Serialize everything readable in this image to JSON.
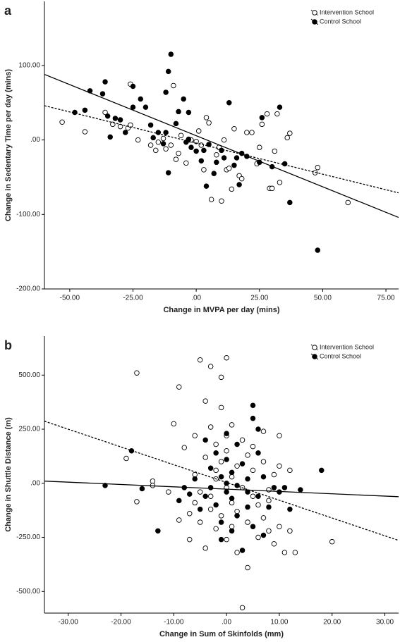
{
  "chart_data": [
    {
      "type": "scatter",
      "panel_label": "a",
      "x_label": "Change in MVPA per day (mins)",
      "y_label": "Change in Sedentary Time per day (mins)",
      "xlim": [
        -60,
        80
      ],
      "ylim": [
        -200,
        186
      ],
      "xticks": [
        {
          "value": -50,
          "label": "-50.00"
        },
        {
          "value": -25,
          "label": "-25.00"
        },
        {
          "value": 0,
          "label": ".00"
        },
        {
          "value": 25,
          "label": "25.00"
        },
        {
          "value": 50,
          "label": "50.00"
        },
        {
          "value": 75,
          "label": "75.00"
        }
      ],
      "yticks": [
        {
          "value": 100,
          "label": "100.00"
        },
        {
          "value": 0,
          "label": ".00"
        },
        {
          "value": -100,
          "label": "-100.00"
        },
        {
          "value": -200,
          "label": "-200.00"
        }
      ],
      "legend": "top-right",
      "series": [
        {
          "name": "Intervention School",
          "color": "#000000",
          "marker": "open",
          "line": "dashed",
          "x": [
            -53,
            -44,
            -36,
            -33,
            -30,
            -27,
            -26,
            -26,
            -23,
            -18,
            -16,
            -15,
            -13,
            -12,
            -10,
            -9,
            -8,
            -7,
            -6,
            -4,
            -3,
            -2,
            0,
            1,
            2,
            3,
            4,
            5,
            6,
            8,
            9,
            10,
            11,
            12,
            13,
            14,
            15,
            17,
            18,
            20,
            22,
            24,
            25,
            26,
            28,
            29,
            30,
            31,
            32,
            33,
            36,
            37,
            47,
            48,
            60
          ],
          "values": [
            24,
            11,
            37,
            21,
            18,
            16,
            75,
            20,
            0,
            -7,
            -14,
            -3,
            2,
            -12,
            -7,
            73,
            -26,
            -18,
            6,
            -31,
            0,
            0,
            -2,
            12,
            -7,
            -40,
            30,
            23,
            -80,
            -20,
            -10,
            -82,
            0,
            -40,
            -38,
            -66,
            15,
            -48,
            -52,
            10,
            10,
            -32,
            -10,
            21,
            35,
            -65,
            -65,
            -15,
            35,
            -57,
            3,
            9,
            -44,
            -37,
            -84
          ],
          "fit": {
            "x": [
              -60,
              80
            ],
            "values": [
              46,
              -71
            ]
          }
        },
        {
          "name": "Control School",
          "color": "#000000",
          "marker": "filled",
          "line": "solid",
          "x": [
            -48,
            -44,
            -42,
            -37,
            -36,
            -35,
            -32,
            -34,
            -30,
            -28,
            -25,
            -25,
            -22,
            -20,
            -18,
            -17,
            -15,
            -13,
            -12,
            -12,
            -11,
            -11,
            -10,
            -8,
            -7,
            -5,
            -4,
            -3,
            -3,
            -2,
            0,
            2,
            3,
            4,
            5,
            7,
            8,
            10,
            11,
            13,
            15,
            16,
            17,
            18,
            20,
            25,
            26,
            30,
            33,
            35,
            37,
            48
          ],
          "values": [
            37,
            40,
            66,
            62,
            78,
            32,
            29,
            4,
            27,
            10,
            72,
            44,
            55,
            44,
            20,
            3,
            10,
            -5,
            10,
            64,
            92,
            -44,
            115,
            22,
            38,
            55,
            -3,
            37,
            1,
            -10,
            -15,
            -28,
            -14,
            -62,
            -6,
            -45,
            -30,
            -14,
            -24,
            50,
            -34,
            -24,
            -60,
            -18,
            -22,
            -30,
            30,
            -36,
            44,
            -32,
            -84,
            -148
          ],
          "fit": {
            "x": [
              -60,
              80
            ],
            "values": [
              88,
              -104
            ]
          }
        }
      ]
    },
    {
      "type": "scatter",
      "panel_label": "b",
      "x_label": "Change in Sum of Skinfolds (mm)",
      "y_label": "Change in Shuttle Distance (m)",
      "xlim": [
        -34.5,
        32.6
      ],
      "ylim": [
        -600,
        680
      ],
      "xticks": [
        {
          "value": -30,
          "label": "-30.00"
        },
        {
          "value": -20,
          "label": "-20.00"
        },
        {
          "value": -10,
          "label": "-10.00"
        },
        {
          "value": 0,
          "label": ".00"
        },
        {
          "value": 10,
          "label": "10.00"
        },
        {
          "value": 20,
          "label": "20.00"
        },
        {
          "value": 30,
          "label": "30.00"
        }
      ],
      "yticks": [
        {
          "value": 500,
          "label": "500.00"
        },
        {
          "value": 250,
          "label": "250.00"
        },
        {
          "value": 0,
          "label": ".00"
        },
        {
          "value": -250,
          "label": "-250.00"
        },
        {
          "value": -500,
          "label": "-500.00"
        }
      ],
      "legend": "top-right",
      "series": [
        {
          "name": "Intervention School",
          "color": "#000000",
          "marker": "open",
          "line": "dashed",
          "x": [
            -17,
            -19,
            -17,
            -14,
            -14,
            -11,
            -10,
            -9,
            -9,
            -8,
            -7,
            -7,
            -6,
            -6,
            -6,
            -5,
            -5,
            -5,
            -4,
            -4,
            -4,
            -3,
            -3,
            -3,
            -3,
            -2,
            -2,
            -2,
            -2,
            -1,
            -1,
            -1,
            -1,
            0,
            0,
            0,
            0,
            0,
            1,
            1,
            1,
            1,
            2,
            2,
            2,
            3,
            3,
            3,
            4,
            4,
            4,
            5,
            5,
            5,
            6,
            6,
            7,
            7,
            7,
            8,
            8,
            9,
            9,
            10,
            10,
            10,
            11,
            12,
            13,
            20,
            12,
            8
          ],
          "values": [
            510,
            115,
            -85,
            10,
            -10,
            -40,
            275,
            -170,
            445,
            165,
            -140,
            -260,
            -90,
            40,
            220,
            570,
            -40,
            -180,
            380,
            120,
            -300,
            -60,
            260,
            540,
            -120,
            20,
            180,
            -210,
            60,
            490,
            350,
            -150,
            100,
            580,
            220,
            -20,
            -260,
            150,
            30,
            -90,
            -200,
            270,
            -320,
            80,
            -130,
            200,
            -20,
            -575,
            -390,
            130,
            -180,
            60,
            -60,
            170,
            -100,
            -250,
            240,
            100,
            -160,
            -30,
            -80,
            -280,
            40,
            220,
            80,
            -200,
            -320,
            -220,
            -320,
            -270,
            60,
            -220
          ],
          "fit": {
            "x": [
              -34.5,
              32.6
            ],
            "values": [
              287,
              -264
            ]
          }
        },
        {
          "name": "Control School",
          "color": "#000000",
          "marker": "filled",
          "line": "solid",
          "x": [
            -23,
            -18,
            -16,
            -13,
            -9,
            -8,
            -7,
            -6,
            -5,
            -4,
            -4,
            -3,
            -3,
            -2,
            -2,
            -1,
            -1,
            0,
            0,
            0,
            0,
            1,
            1,
            1,
            2,
            2,
            2,
            3,
            3,
            4,
            4,
            4,
            5,
            5,
            5,
            6,
            6,
            7,
            7,
            8,
            9,
            10,
            11,
            12,
            14,
            18,
            6,
            -1
          ],
          "values": [
            -10,
            150,
            -25,
            -220,
            -80,
            -20,
            -50,
            20,
            -120,
            200,
            -60,
            70,
            -20,
            140,
            -100,
            30,
            -180,
            0,
            -40,
            110,
            230,
            -70,
            50,
            -220,
            180,
            -10,
            -150,
            -310,
            90,
            -40,
            -110,
            20,
            300,
            360,
            -200,
            -60,
            140,
            -240,
            30,
            -110,
            -20,
            -40,
            -20,
            -120,
            -30,
            60,
            250,
            -260
          ],
          "fit": {
            "x": [
              -34.5,
              32.6
            ],
            "values": [
              10,
              -62
            ]
          }
        }
      ]
    }
  ]
}
